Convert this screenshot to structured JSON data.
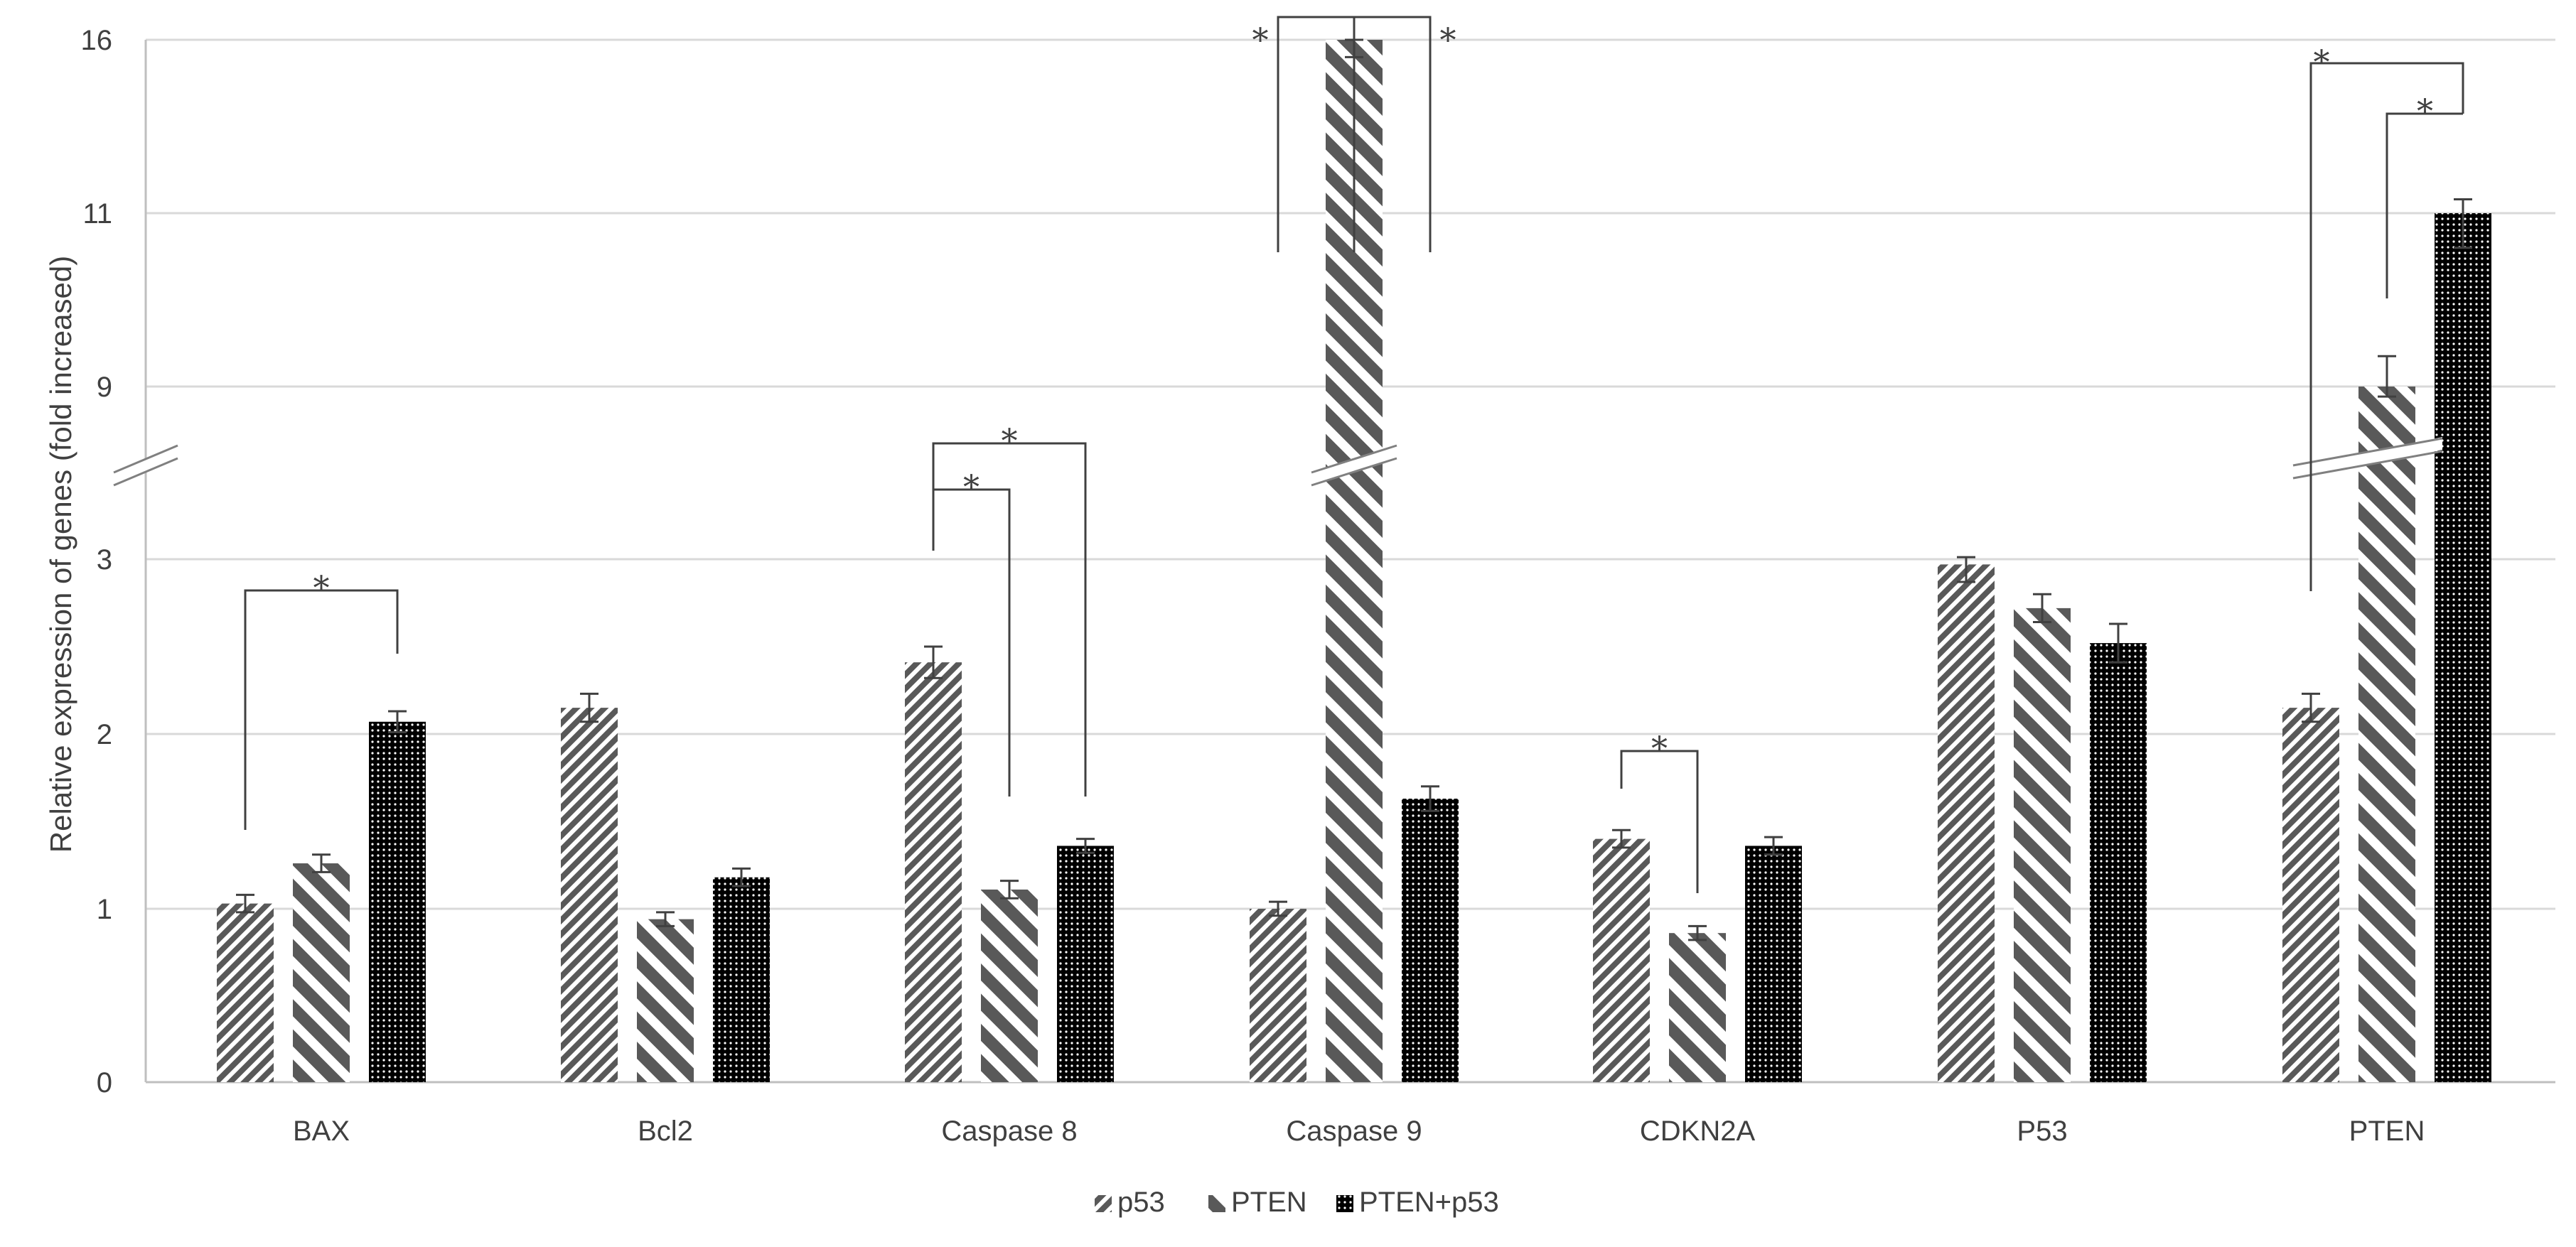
{
  "chart_data": {
    "type": "bar",
    "title": "",
    "xlabel": "",
    "ylabel": "Relative expression of genes (fold increased)",
    "y_ticks": [
      "0",
      "1",
      "2",
      "3",
      "9",
      "11",
      "16"
    ],
    "y_axis_break": {
      "from": 3,
      "to": 9
    },
    "categories": [
      "BAX",
      "Bcl2",
      "Caspase 8",
      "Caspase 9",
      "CDKN2A",
      "P53",
      "PTEN"
    ],
    "series": [
      {
        "name": "p53",
        "pattern": "fine-diagonal",
        "color": "#595959",
        "values": [
          1.03,
          2.15,
          2.41,
          1.0,
          1.4,
          2.97,
          2.15
        ],
        "errors": [
          0.05,
          0.08,
          0.09,
          0.04,
          0.05,
          0.1,
          0.08
        ]
      },
      {
        "name": "PTEN",
        "pattern": "wide-diagonal",
        "color": "#595959",
        "values": [
          1.26,
          0.94,
          1.11,
          16.0,
          0.86,
          2.72,
          9.0
        ],
        "errors": [
          0.05,
          0.04,
          0.05,
          0.5,
          0.04,
          0.08,
          0.35
        ]
      },
      {
        "name": "PTEN+p53",
        "pattern": "dots",
        "color": "#000000",
        "values": [
          2.07,
          1.18,
          1.36,
          1.63,
          1.36,
          2.52,
          11.0
        ],
        "errors": [
          0.06,
          0.05,
          0.04,
          0.07,
          0.05,
          0.11,
          0.4
        ]
      }
    ],
    "significance": [
      {
        "category": "BAX",
        "pair": [
          "p53",
          "PTEN+p53"
        ],
        "label": "*"
      },
      {
        "category": "Caspase 8",
        "pair": [
          "p53",
          "PTEN"
        ],
        "label": "*"
      },
      {
        "category": "Caspase 8",
        "pair": [
          "p53",
          "PTEN+p53"
        ],
        "label": "*"
      },
      {
        "category": "Caspase 9",
        "pair": [
          "p53",
          "PTEN"
        ],
        "label": "*"
      },
      {
        "category": "Caspase 9",
        "pair": [
          "PTEN",
          "PTEN+p53"
        ],
        "label": "*"
      },
      {
        "category": "CDKN2A",
        "pair": [
          "p53",
          "PTEN"
        ],
        "label": "*"
      },
      {
        "category": "PTEN",
        "pair": [
          "PTEN",
          "PTEN+p53"
        ],
        "label": "*"
      },
      {
        "category": "PTEN",
        "pair": [
          "p53",
          "PTEN+p53"
        ],
        "label": "*"
      }
    ],
    "legend_position": "bottom-center",
    "grid": true
  }
}
